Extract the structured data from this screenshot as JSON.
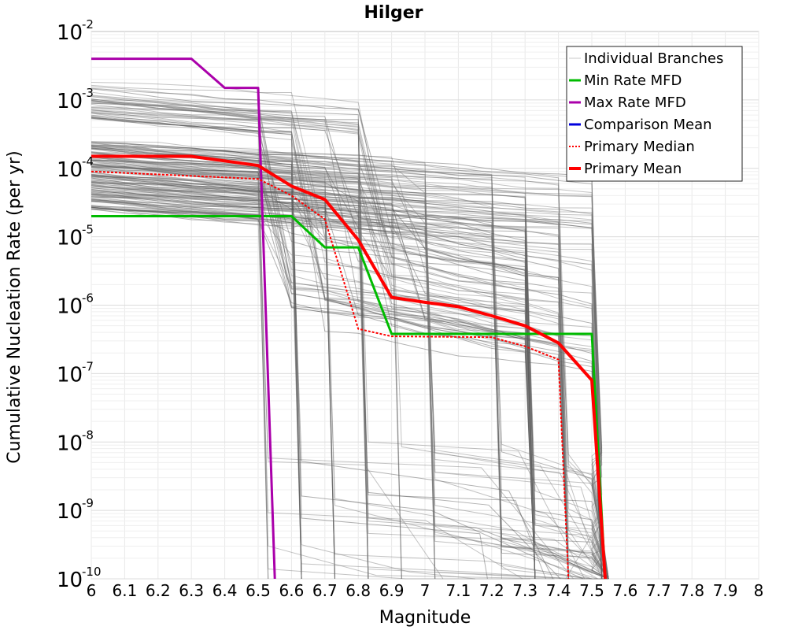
{
  "chart_data": {
    "type": "line",
    "title": "Hilger",
    "xlabel": "Magnitude",
    "ylabel": "Cumulative Nucleation Rate (per yr)",
    "xscale": "linear",
    "yscale": "log",
    "xlim": [
      6,
      8
    ],
    "ylim": [
      1e-10,
      0.01
    ],
    "xticks": [
      "6",
      "6.1",
      "6.2",
      "6.3",
      "6.4",
      "6.5",
      "6.6",
      "6.7",
      "6.8",
      "6.9",
      "7",
      "7.1",
      "7.2",
      "7.3",
      "7.4",
      "7.5",
      "7.6",
      "7.7",
      "7.8",
      "7.9",
      "8"
    ],
    "yticks": [
      {
        "base": "10",
        "exp": "-2"
      },
      {
        "base": "10",
        "exp": "-3"
      },
      {
        "base": "10",
        "exp": "-4"
      },
      {
        "base": "10",
        "exp": "-5"
      },
      {
        "base": "10",
        "exp": "-6"
      },
      {
        "base": "10",
        "exp": "-7"
      },
      {
        "base": "10",
        "exp": "-8"
      },
      {
        "base": "10",
        "exp": "-9"
      },
      {
        "base": "10",
        "exp": "-10"
      }
    ],
    "grid": true,
    "legend_position": "top-right",
    "legend": [
      {
        "label": "Individual Branches",
        "color": "#c8c8c8",
        "style": "solid",
        "width": 1
      },
      {
        "label": "Min Rate MFD",
        "color": "#00bb00",
        "style": "solid",
        "width": 3
      },
      {
        "label": "Max Rate MFD",
        "color": "#aa00aa",
        "style": "solid",
        "width": 3
      },
      {
        "label": "Comparison Mean",
        "color": "#0000dd",
        "style": "solid",
        "width": 3
      },
      {
        "label": "Primary Median",
        "color": "#ff0000",
        "style": "dotted",
        "width": 2
      },
      {
        "label": "Primary Mean",
        "color": "#ff0000",
        "style": "solid",
        "width": 4
      }
    ],
    "series": [
      {
        "name": "Min Rate MFD",
        "color": "#00bb00",
        "width": 3,
        "dash": "",
        "points": [
          [
            6.0,
            2e-05
          ],
          [
            6.6,
            2e-05
          ],
          [
            6.7,
            7e-06
          ],
          [
            6.8,
            7e-06
          ],
          [
            6.9,
            3.8e-07
          ],
          [
            7.5,
            3.8e-07
          ],
          [
            7.54,
            1e-10
          ]
        ]
      },
      {
        "name": "Max Rate MFD",
        "color": "#aa00aa",
        "width": 3,
        "dash": "",
        "points": [
          [
            6.0,
            0.004
          ],
          [
            6.3,
            0.004
          ],
          [
            6.4,
            0.0015
          ],
          [
            6.5,
            0.0015
          ],
          [
            6.55,
            1e-10
          ]
        ]
      },
      {
        "name": "Primary Median",
        "color": "#ff0000",
        "width": 2,
        "dash": "3,2",
        "points": [
          [
            6.0,
            9e-05
          ],
          [
            6.5,
            7e-05
          ],
          [
            6.6,
            4e-05
          ],
          [
            6.7,
            1.8e-05
          ],
          [
            6.8,
            4.5e-07
          ],
          [
            6.9,
            3.5e-07
          ],
          [
            7.2,
            3.4e-07
          ],
          [
            7.3,
            2.5e-07
          ],
          [
            7.4,
            1.6e-07
          ],
          [
            7.43,
            1e-10
          ]
        ]
      },
      {
        "name": "Primary Mean",
        "color": "#ff0000",
        "width": 4,
        "dash": "",
        "points": [
          [
            6.0,
            0.00015
          ],
          [
            6.3,
            0.00015
          ],
          [
            6.5,
            0.00011
          ],
          [
            6.6,
            5.5e-05
          ],
          [
            6.7,
            3.5e-05
          ],
          [
            6.8,
            9e-06
          ],
          [
            6.9,
            1.3e-06
          ],
          [
            7.0,
            1.1e-06
          ],
          [
            7.1,
            9.5e-07
          ],
          [
            7.2,
            7e-07
          ],
          [
            7.3,
            5e-07
          ],
          [
            7.4,
            2.8e-07
          ],
          [
            7.5,
            8e-08
          ],
          [
            7.54,
            1e-10
          ]
        ]
      }
    ]
  }
}
